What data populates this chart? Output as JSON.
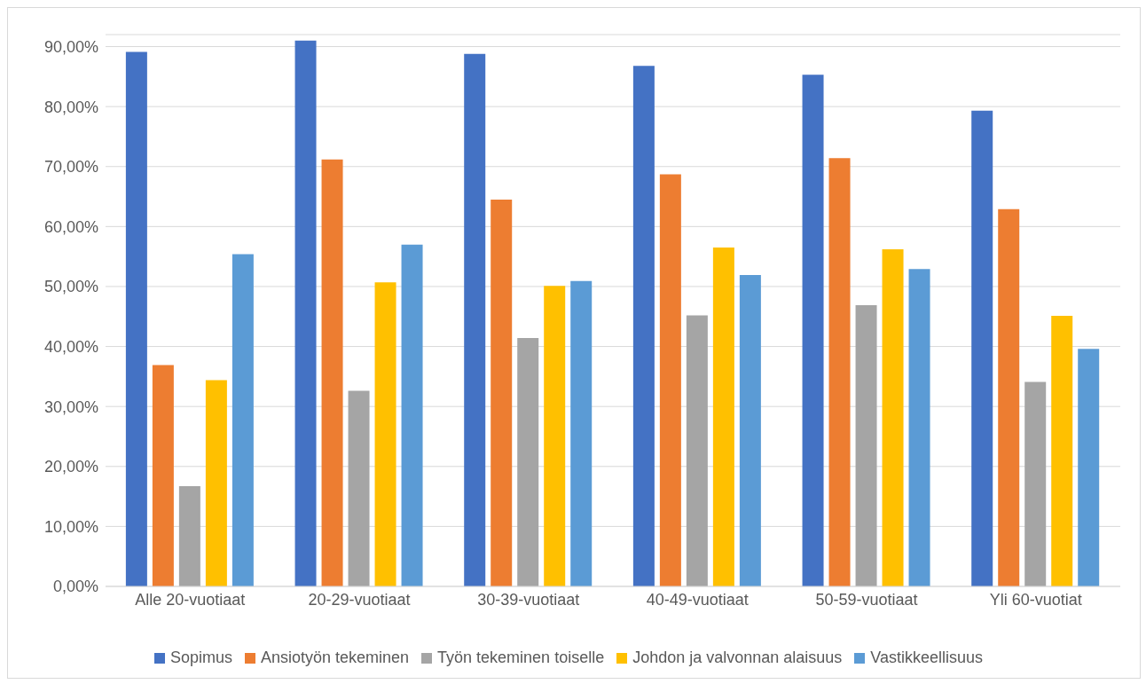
{
  "chart_data": {
    "type": "bar",
    "categories": [
      "Alle 20-vuotiaat",
      "20-29-vuotiaat",
      "30-39-vuotiaat",
      "40-49-vuotiaat",
      "50-59-vuotiaat",
      "Yli 60-vuotiat"
    ],
    "series": [
      {
        "name": "Sopimus",
        "color": "#4472c4",
        "values": [
          89.1,
          91.0,
          88.8,
          86.8,
          85.3,
          79.3
        ]
      },
      {
        "name": "Ansiotyön tekeminen",
        "color": "#ed7d31",
        "values": [
          36.9,
          71.2,
          64.5,
          68.7,
          71.4,
          62.9
        ]
      },
      {
        "name": "Työn tekeminen toiselle",
        "color": "#a5a5a5",
        "values": [
          16.7,
          32.6,
          41.4,
          45.2,
          46.9,
          34.1
        ]
      },
      {
        "name": "Johdon ja valvonnan alaisuus",
        "color": "#ffc000",
        "values": [
          34.4,
          50.7,
          50.1,
          56.5,
          56.2,
          45.1
        ]
      },
      {
        "name": "Vastikkeellisuus",
        "color": "#5b9bd5",
        "values": [
          55.4,
          57.0,
          50.9,
          51.9,
          52.9,
          39.6
        ]
      }
    ],
    "ylim": [
      0,
      92
    ],
    "yticks": [
      {
        "value": 0,
        "label": "0,00%"
      },
      {
        "value": 10,
        "label": "10,00%"
      },
      {
        "value": 20,
        "label": "20,00%"
      },
      {
        "value": 30,
        "label": "30,00%"
      },
      {
        "value": 40,
        "label": "40,00%"
      },
      {
        "value": 50,
        "label": "50,00%"
      },
      {
        "value": 60,
        "label": "60,00%"
      },
      {
        "value": 70,
        "label": "70,00%"
      },
      {
        "value": 80,
        "label": "80,00%"
      },
      {
        "value": 90,
        "label": "90,00%"
      }
    ],
    "grid": "y",
    "legend": "bottom"
  }
}
